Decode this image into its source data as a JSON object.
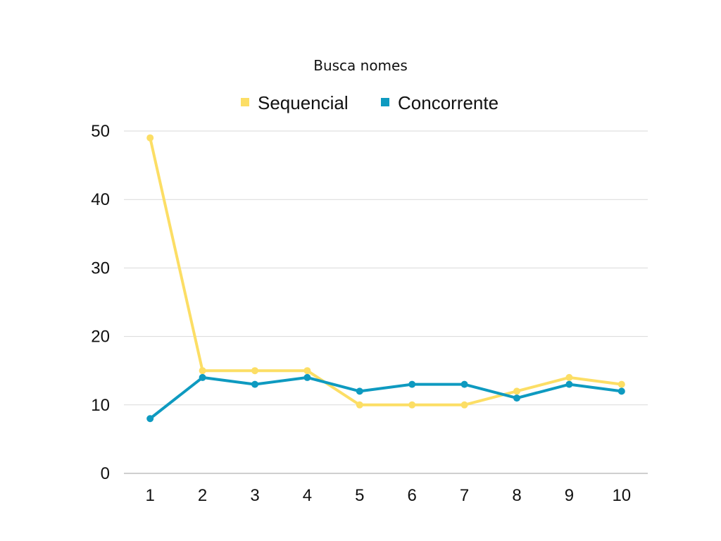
{
  "chart_data": {
    "type": "line",
    "title": "Busca nomes",
    "xlabel": "",
    "ylabel": "",
    "categories": [
      "1",
      "2",
      "3",
      "4",
      "5",
      "6",
      "7",
      "8",
      "9",
      "10"
    ],
    "series": [
      {
        "name": "Sequencial",
        "color": "#FCDE65",
        "values": [
          49,
          15,
          15,
          15,
          10,
          10,
          10,
          12,
          14,
          13
        ]
      },
      {
        "name": "Concorrente",
        "color": "#0E9AC0",
        "values": [
          8,
          14,
          13,
          14,
          12,
          13,
          13,
          11,
          13,
          12
        ]
      }
    ],
    "ylim": [
      0,
      50
    ],
    "yticks": [
      "0",
      "10",
      "20",
      "30",
      "40",
      "50"
    ],
    "grid": true,
    "legend_position": "top-center",
    "colors": {
      "grid": "#D9D9D9",
      "axis": "#BFBFBF",
      "text": "#111111"
    }
  }
}
